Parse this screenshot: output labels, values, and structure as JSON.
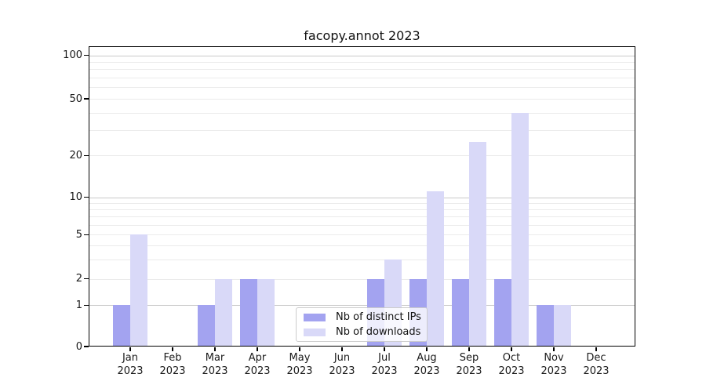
{
  "chart_data": {
    "type": "bar",
    "title": "facopy.annot 2023",
    "categories": [
      "Jan 2023",
      "Feb 2023",
      "Mar 2023",
      "Apr 2023",
      "May 2023",
      "Jun 2023",
      "Jul 2023",
      "Aug 2023",
      "Sep 2023",
      "Oct 2023",
      "Nov 2023",
      "Dec 2023"
    ],
    "series": [
      {
        "name": "Nb of distinct IPs",
        "color": "#a3a3f0",
        "values": [
          1,
          0,
          1,
          2,
          0,
          0,
          2,
          2,
          2,
          2,
          1,
          0
        ]
      },
      {
        "name": "Nb of downloads",
        "color": "#d9d9f8",
        "values": [
          5,
          0,
          2,
          2,
          0,
          0,
          3,
          11,
          25,
          40,
          1,
          0
        ]
      }
    ],
    "y_axis": {
      "tick_labels": [
        0,
        1,
        2,
        5,
        10,
        20,
        50,
        100
      ],
      "major_gridlines": [
        1,
        10,
        100
      ],
      "minor_gridlines": [
        2,
        3,
        4,
        5,
        6,
        7,
        8,
        9,
        20,
        30,
        40,
        50,
        60,
        70,
        80,
        90
      ],
      "scale": "log-like with zero baseline",
      "ylim": [
        0,
        115
      ]
    },
    "legend": {
      "entries": [
        "Nb of distinct IPs",
        "Nb of downloads"
      ],
      "position": "lower center"
    },
    "grid": "on",
    "xlabel": "",
    "ylabel": ""
  },
  "colors": {
    "distinct_ips": "#a3a3f0",
    "downloads": "#d9d9f8",
    "major_grid": "#c9c9c9",
    "minor_grid": "#ebebeb",
    "axis": "#000000",
    "text": "#1a1a1a"
  }
}
